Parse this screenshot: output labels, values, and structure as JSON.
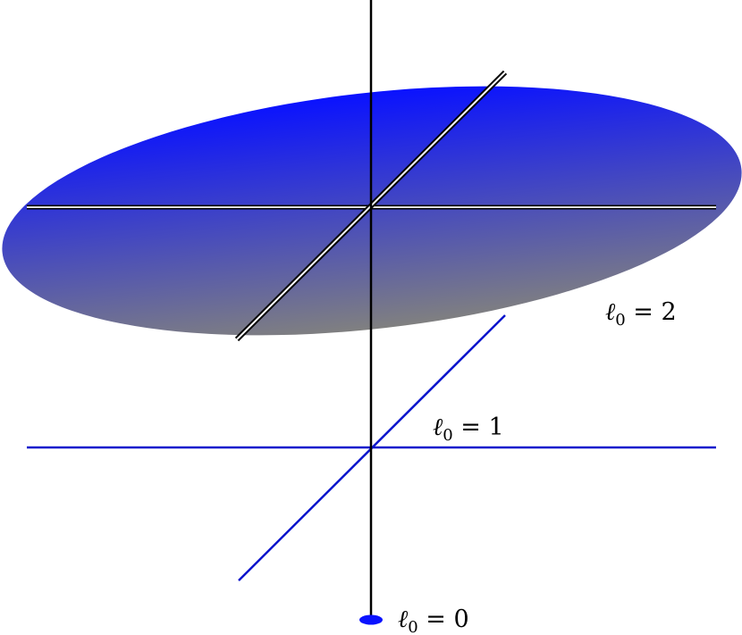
{
  "diagram": {
    "colors": {
      "disk_top": "#0a12ff",
      "disk_bottom": "#808080",
      "level1_lines": "#0a14cc",
      "level0_point": "#0a12ff",
      "axis": "#000000",
      "disk_lines_outer": "#000000",
      "disk_lines_inner": "#ffffff"
    },
    "labels": {
      "level2": {
        "symbol": "ℓ",
        "sub": "0",
        "rest": " = 2"
      },
      "level1": {
        "symbol": "ℓ",
        "sub": "0",
        "rest": " = 1"
      },
      "level0": {
        "symbol": "ℓ",
        "sub": "0",
        "rest": " = 0"
      }
    }
  }
}
